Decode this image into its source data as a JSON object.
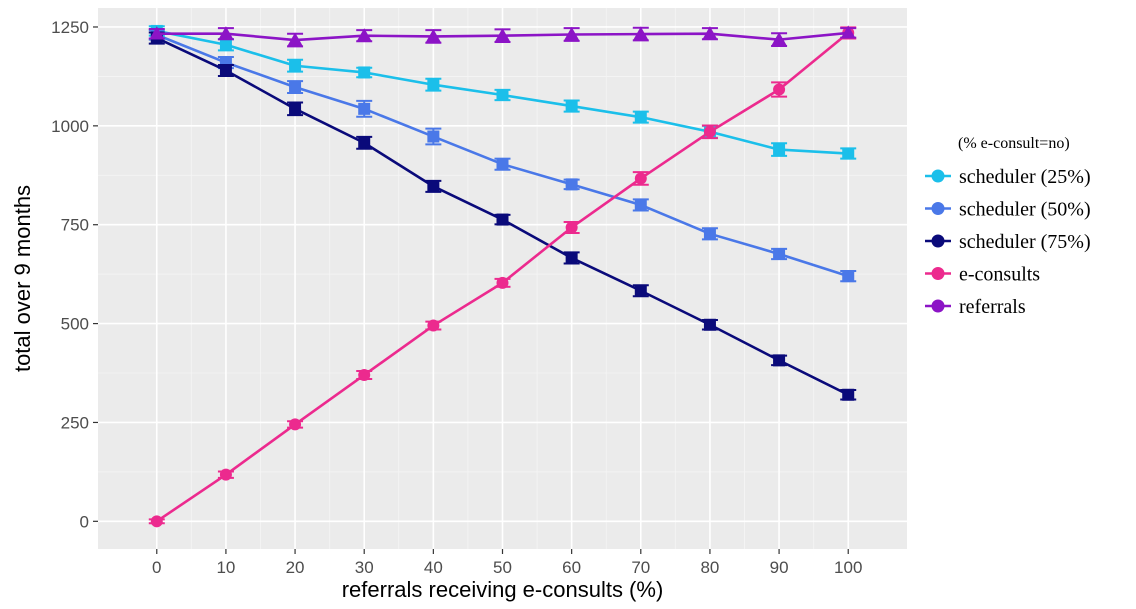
{
  "chart_data": {
    "type": "line",
    "title": "",
    "xlabel": "referrals receiving e-consults (%)",
    "ylabel": "total over 9 months",
    "x": [
      0,
      10,
      20,
      30,
      40,
      50,
      60,
      70,
      80,
      90,
      100
    ],
    "xlim": [
      -8.5,
      108.5
    ],
    "ylim": [
      -70,
      1298
    ],
    "x_ticks": [
      0,
      10,
      20,
      30,
      40,
      50,
      60,
      70,
      80,
      90,
      100
    ],
    "x_tick_labels": [
      "0",
      "10",
      "20",
      "30",
      "40",
      "50",
      "60",
      "70",
      "80",
      "90",
      "100"
    ],
    "y_ticks": [
      0,
      250,
      500,
      750,
      1000,
      1250
    ],
    "y_tick_labels": [
      "0",
      "250",
      "500",
      "750",
      "1000",
      "1250"
    ],
    "grid": true,
    "background_color": "#ebebeb",
    "legend": {
      "title": "(% e-consult=no)",
      "position": "right"
    },
    "series": [
      {
        "name": "scheduler (25%)",
        "color": "#1bbfea",
        "marker": "square",
        "values": [
          1240,
          1205,
          1152,
          1135,
          1104,
          1078,
          1050,
          1022,
          985,
          940,
          930
        ],
        "errors": [
          12,
          14,
          15,
          12,
          15,
          13,
          14,
          14,
          15,
          16,
          13
        ]
      },
      {
        "name": "scheduler (50%)",
        "color": "#4a78e8",
        "marker": "square",
        "values": [
          1230,
          1160,
          1098,
          1043,
          973,
          903,
          852,
          800,
          727,
          676,
          620
        ],
        "errors": [
          12,
          14,
          15,
          20,
          20,
          14,
          12,
          14,
          14,
          13,
          13
        ]
      },
      {
        "name": "scheduler (75%)",
        "color": "#0a0a7a",
        "marker": "square",
        "values": [
          1222,
          1140,
          1043,
          957,
          847,
          763,
          666,
          583,
          497,
          407,
          320
        ],
        "errors": [
          14,
          14,
          16,
          15,
          14,
          12,
          14,
          14,
          12,
          12,
          12
        ]
      },
      {
        "name": "e-consults",
        "color": "#ec2a8e",
        "marker": "circle",
        "values": [
          0,
          118,
          245,
          370,
          495,
          603,
          743,
          867,
          985,
          1092,
          1235
        ],
        "errors": [
          5,
          8,
          8,
          10,
          10,
          10,
          14,
          16,
          16,
          18,
          14
        ]
      },
      {
        "name": "referrals",
        "color": "#8c14c6",
        "marker": "triangle",
        "values": [
          1233,
          1233,
          1217,
          1228,
          1226,
          1228,
          1231,
          1232,
          1233,
          1218,
          1235
        ],
        "errors": [
          12,
          14,
          16,
          14,
          16,
          16,
          16,
          16,
          14,
          16,
          12
        ]
      }
    ]
  }
}
